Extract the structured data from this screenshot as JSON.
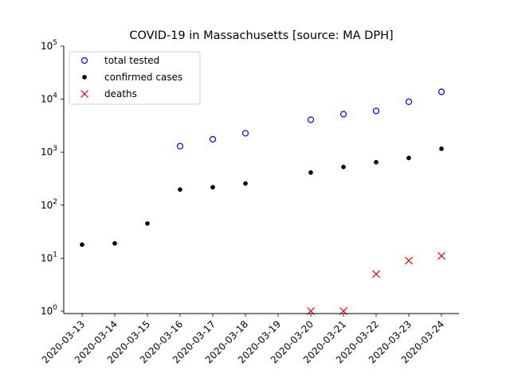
{
  "chart_data": {
    "type": "scatter",
    "title": "COVID-19 in Massachusetts [source: MA DPH]",
    "xlabel": "",
    "ylabel": "",
    "yscale": "log",
    "ylim": [
      0.9,
      100000
    ],
    "yticks": [
      {
        "value": 1,
        "base": "10",
        "exp": "0"
      },
      {
        "value": 10,
        "base": "10",
        "exp": "1"
      },
      {
        "value": 100,
        "base": "10",
        "exp": "2"
      },
      {
        "value": 1000,
        "base": "10",
        "exp": "3"
      },
      {
        "value": 10000,
        "base": "10",
        "exp": "4"
      },
      {
        "value": 100000,
        "base": "10",
        "exp": "5"
      }
    ],
    "x": [
      "2020-03-13",
      "2020-03-14",
      "2020-03-15",
      "2020-03-16",
      "2020-03-17",
      "2020-03-18",
      "2020-03-19",
      "2020-03-20",
      "2020-03-21",
      "2020-03-22",
      "2020-03-23",
      "2020-03-24"
    ],
    "legend_position": "top-left",
    "series": [
      {
        "name": "total tested",
        "marker": "open-circle",
        "color": "#0000ff",
        "values": [
          null,
          null,
          null,
          1296,
          1751,
          2271,
          null,
          4086,
          5207,
          6004,
          8922,
          13749
        ]
      },
      {
        "name": "confirmed cases",
        "marker": "filled-dot",
        "color": "#000000",
        "values": [
          18,
          19,
          45,
          197,
          218,
          256,
          null,
          413,
          525,
          646,
          777,
          1159
        ]
      },
      {
        "name": "deaths",
        "marker": "x",
        "color": "#ff0000",
        "values": [
          null,
          null,
          null,
          null,
          null,
          null,
          null,
          1,
          1,
          5,
          9,
          11
        ]
      }
    ]
  }
}
